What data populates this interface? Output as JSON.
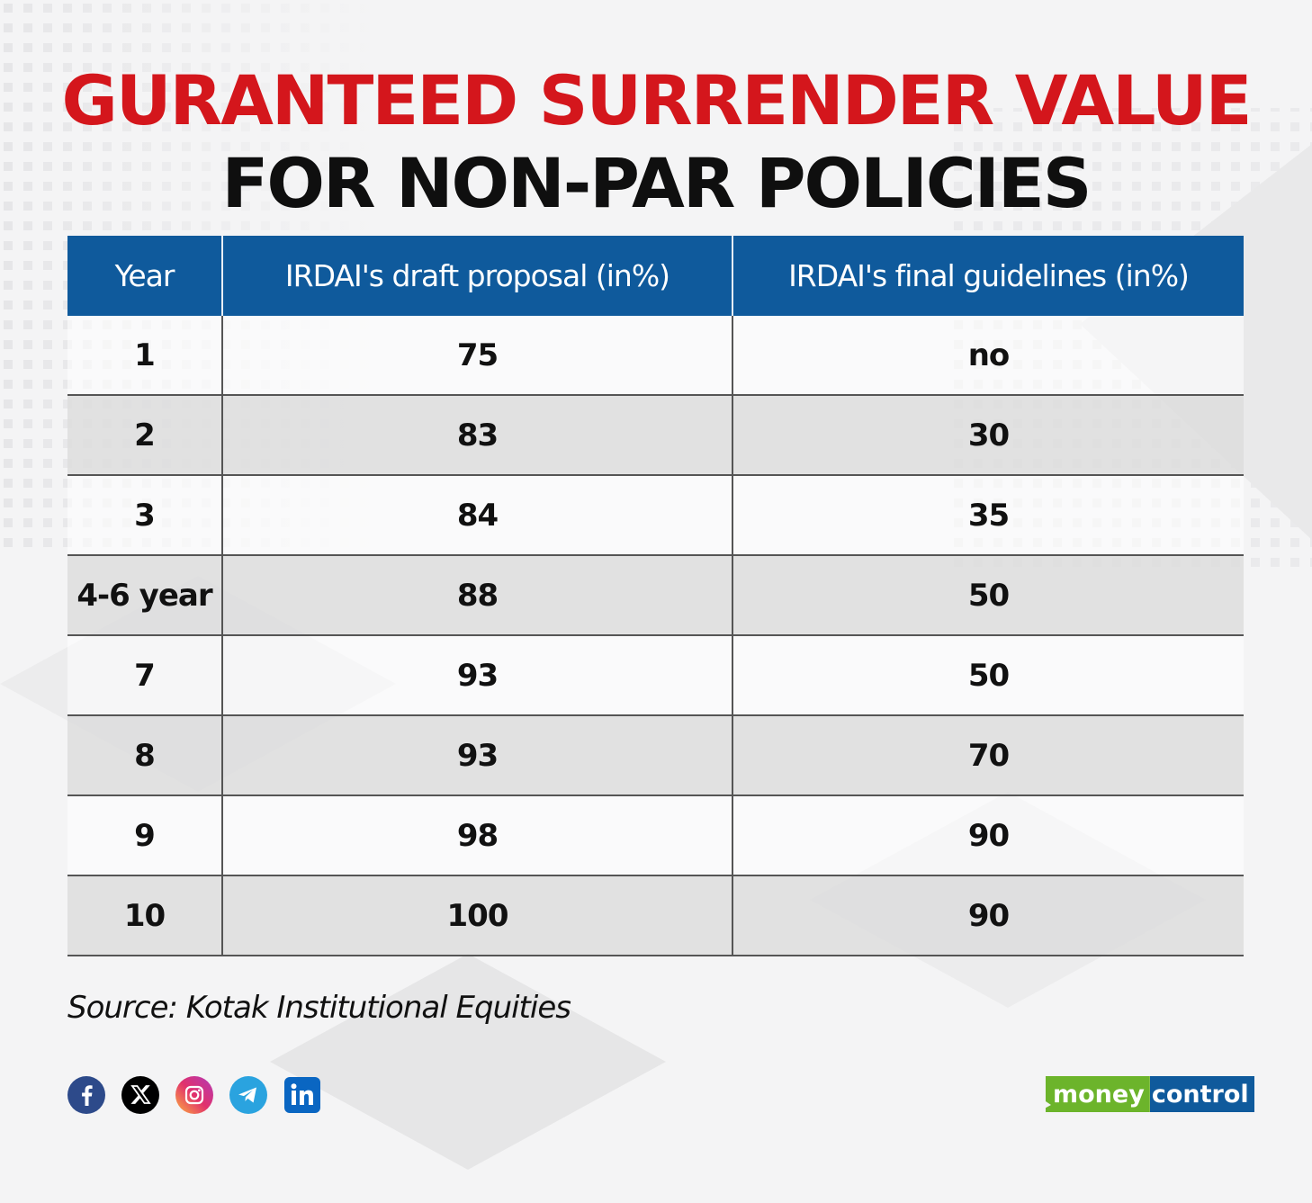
{
  "title": {
    "line1": "GURANTEED SURRENDER VALUE",
    "line2": "FOR NON-PAR POLICIES"
  },
  "chart_data": {
    "type": "table",
    "columns": [
      "Year",
      "IRDAI's draft proposal (in%)",
      "IRDAI's final guidelines (in%)"
    ],
    "rows": [
      [
        "1",
        "75",
        "no"
      ],
      [
        "2",
        "83",
        "30"
      ],
      [
        "3",
        "84",
        "35"
      ],
      [
        "4-6 year",
        "88",
        "50"
      ],
      [
        "7",
        "93",
        "50"
      ],
      [
        "8",
        "93",
        "70"
      ],
      [
        "9",
        "98",
        "90"
      ],
      [
        "10",
        "100",
        "90"
      ]
    ],
    "header_color": "#0f5a9c",
    "title_color": "#d4161c"
  },
  "source": "Source: Kotak Institutional Equities",
  "socials": [
    {
      "icon": "facebook-icon",
      "color": "#2d4a8a"
    },
    {
      "icon": "x-icon",
      "color": "#000000"
    },
    {
      "icon": "instagram-icon",
      "color": "#e1306c"
    },
    {
      "icon": "telegram-icon",
      "color": "#2aa3df"
    },
    {
      "icon": "linkedin-icon",
      "color": "#0a66c2"
    }
  ],
  "logo": {
    "part1": "money",
    "part2": "control",
    "colors": {
      "money": "#6cb42b",
      "control": "#0f5a9c"
    }
  }
}
